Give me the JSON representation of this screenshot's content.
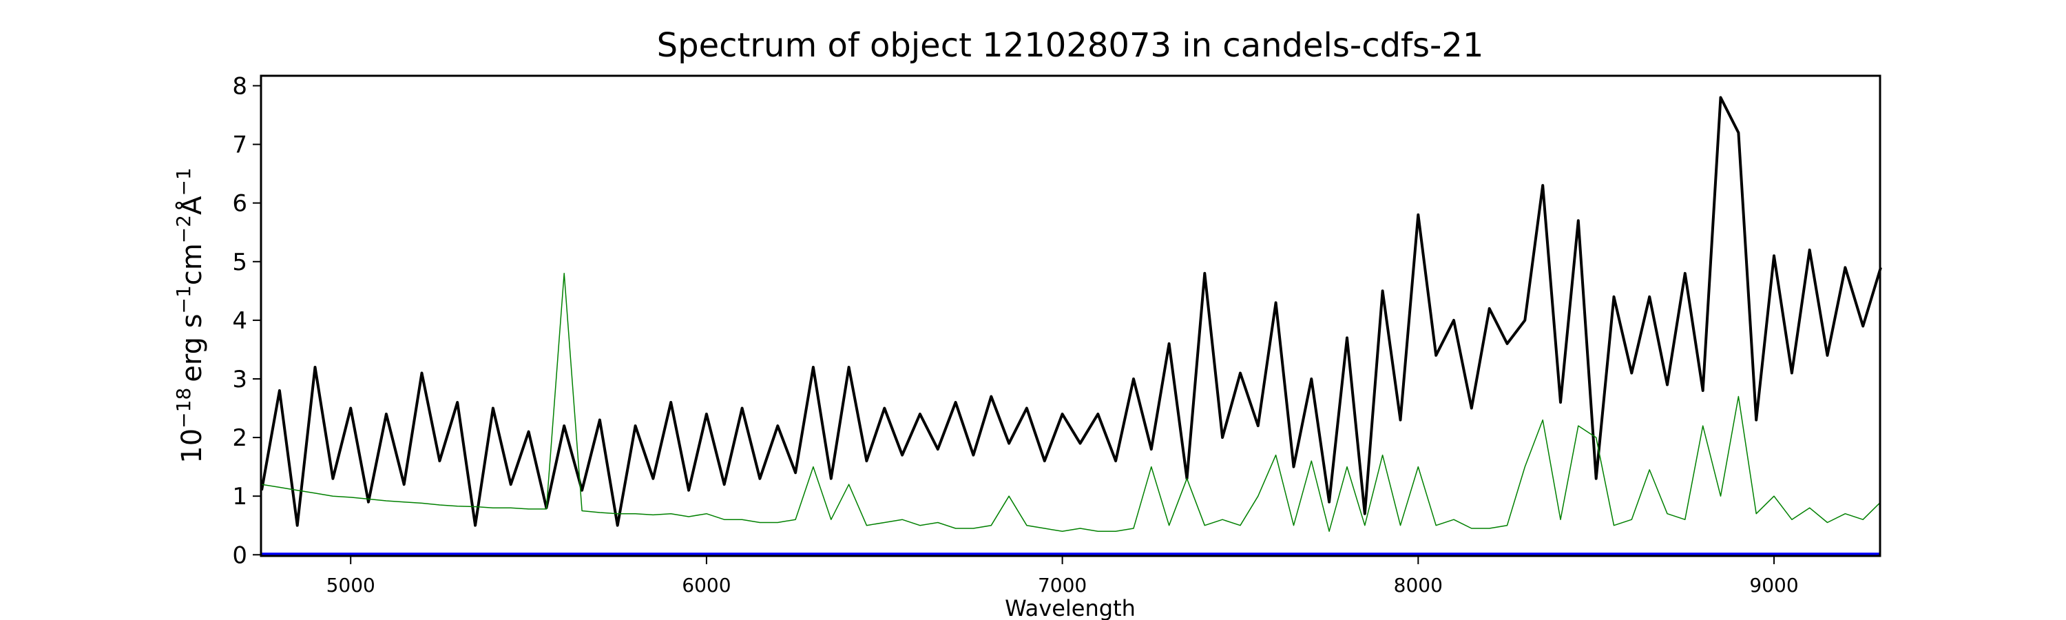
{
  "chart_data": {
    "type": "line",
    "title": "Spectrum of object 121028073 in candels-cdfs-21",
    "xlabel": "Wavelength",
    "ylabel": "10^-18 erg s^-1 cm^-2 Å^-1",
    "ylabel_parts": {
      "base": "10",
      "exp1": "−18",
      "erg": "erg s",
      "exp2": "−1",
      "cm": "cm",
      "exp3": "−2",
      "ang": "Å",
      "exp4": "−1"
    },
    "xlim": [
      4748,
      9298
    ],
    "ylim": [
      -0.02,
      8.17
    ],
    "xticks": [
      5000,
      6000,
      7000,
      8000,
      9000
    ],
    "xtick_labels": [
      "5000",
      "6000",
      "7000",
      "8000",
      "9000"
    ],
    "yticks": [
      0,
      1,
      2,
      3,
      4,
      5,
      6,
      7,
      8
    ],
    "ytick_labels": [
      "0",
      "1",
      "2",
      "3",
      "4",
      "5",
      "6",
      "7",
      "8"
    ],
    "grid": false,
    "x": [
      4750,
      4800,
      4850,
      4900,
      4950,
      5000,
      5050,
      5100,
      5150,
      5200,
      5250,
      5300,
      5350,
      5400,
      5450,
      5500,
      5550,
      5600,
      5650,
      5700,
      5750,
      5800,
      5850,
      5900,
      5950,
      6000,
      6050,
      6100,
      6150,
      6200,
      6250,
      6300,
      6350,
      6400,
      6450,
      6500,
      6550,
      6600,
      6650,
      6700,
      6750,
      6800,
      6850,
      6900,
      6950,
      7000,
      7050,
      7100,
      7150,
      7200,
      7250,
      7300,
      7350,
      7400,
      7450,
      7500,
      7550,
      7600,
      7650,
      7700,
      7750,
      7800,
      7850,
      7900,
      7950,
      8000,
      8050,
      8100,
      8150,
      8200,
      8250,
      8300,
      8350,
      8400,
      8450,
      8500,
      8550,
      8600,
      8650,
      8700,
      8750,
      8800,
      8850,
      8900,
      8950,
      9000,
      9050,
      9100,
      9150,
      9200,
      9250,
      9300
    ],
    "series": [
      {
        "role": "flux",
        "color": "#000000",
        "values": [
          1.1,
          2.8,
          0.5,
          3.2,
          1.3,
          2.5,
          0.9,
          2.4,
          1.2,
          3.1,
          1.6,
          2.6,
          0.5,
          2.5,
          1.2,
          2.1,
          0.8,
          2.2,
          1.1,
          2.3,
          0.5,
          2.2,
          1.3,
          2.6,
          1.1,
          2.4,
          1.2,
          2.5,
          1.3,
          2.2,
          1.4,
          3.2,
          1.3,
          3.2,
          1.6,
          2.5,
          1.7,
          2.4,
          1.8,
          2.6,
          1.7,
          2.7,
          1.9,
          2.5,
          1.6,
          2.4,
          1.9,
          2.4,
          1.6,
          3.0,
          1.8,
          3.6,
          1.3,
          4.8,
          2.0,
          3.1,
          2.2,
          4.3,
          1.5,
          3.0,
          0.9,
          3.7,
          0.7,
          4.5,
          2.3,
          5.8,
          3.4,
          4.0,
          2.5,
          4.2,
          3.6,
          4.0,
          6.3,
          2.6,
          5.7,
          1.3,
          4.4,
          3.1,
          4.4,
          2.9,
          4.8,
          2.8,
          7.8,
          7.2,
          2.3,
          5.1,
          3.1,
          5.2,
          3.4,
          4.9,
          3.9,
          4.9
        ]
      },
      {
        "role": "sky",
        "color": "#008000",
        "values": [
          1.2,
          1.15,
          1.1,
          1.05,
          1.0,
          0.98,
          0.95,
          0.92,
          0.9,
          0.88,
          0.85,
          0.83,
          0.82,
          0.8,
          0.8,
          0.78,
          0.78,
          4.8,
          0.75,
          0.72,
          0.7,
          0.7,
          0.68,
          0.7,
          0.65,
          0.7,
          0.6,
          0.6,
          0.55,
          0.55,
          0.6,
          1.5,
          0.6,
          1.2,
          0.5,
          0.55,
          0.6,
          0.5,
          0.55,
          0.45,
          0.45,
          0.5,
          1.0,
          0.5,
          0.45,
          0.4,
          0.45,
          0.4,
          0.4,
          0.45,
          1.5,
          0.5,
          1.3,
          0.5,
          0.6,
          0.5,
          1.0,
          1.7,
          0.5,
          1.6,
          0.4,
          1.5,
          0.5,
          1.7,
          0.5,
          1.5,
          0.5,
          0.6,
          0.45,
          0.45,
          0.5,
          1.5,
          2.3,
          0.6,
          2.2,
          2.0,
          0.5,
          0.6,
          1.45,
          0.7,
          0.6,
          2.2,
          1.0,
          2.7,
          0.7,
          1.0,
          0.6,
          0.8,
          0.55,
          0.7,
          0.6,
          0.9
        ]
      },
      {
        "role": "zero",
        "color": "#0000ff",
        "values_const": 0
      }
    ]
  }
}
